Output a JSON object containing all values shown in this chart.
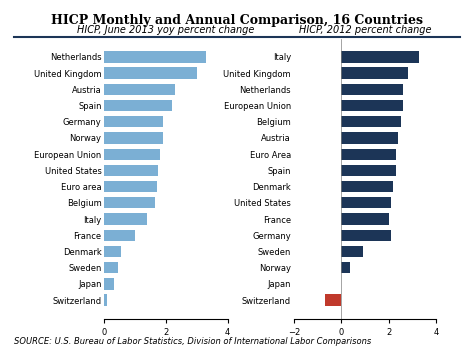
{
  "title": "HICP Monthly and Annual Comparison, 16 Countries",
  "left_subtitle": "HICP, June 2013 yoy percent change",
  "right_subtitle": "HICP, 2012 percent change",
  "source": "SOURCE: U.S. Bureau of Labor Statistics, Division of International Labor Comparisons",
  "left_countries": [
    "Netherlands",
    "United Kingdom",
    "Austria",
    "Spain",
    "Germany",
    "Norway",
    "European Union",
    "United States",
    "Euro area",
    "Belgium",
    "Italy",
    "France",
    "Denmark",
    "Sweden",
    "Japan",
    "Switzerland"
  ],
  "left_values": [
    3.3,
    3.0,
    2.3,
    2.2,
    1.9,
    1.9,
    1.8,
    1.75,
    1.7,
    1.65,
    1.4,
    1.0,
    0.55,
    0.45,
    0.3,
    0.1
  ],
  "left_color": "#7bafd4",
  "right_countries": [
    "Italy",
    "United Kingdom",
    "Netherlands",
    "European Union",
    "Belgium",
    "Austria",
    "Euro Area",
    "Spain",
    "Denmark",
    "United States",
    "France",
    "Germany",
    "Sweden",
    "Norway",
    "Japan",
    "Switzerland"
  ],
  "right_values": [
    3.3,
    2.8,
    2.6,
    2.6,
    2.5,
    2.4,
    2.3,
    2.3,
    2.2,
    2.1,
    2.0,
    2.1,
    0.9,
    0.35,
    0.0,
    -0.7
  ],
  "right_color_positive": "#1c3557",
  "right_color_negative": "#c0392b",
  "left_xlim": [
    0,
    4
  ],
  "right_xlim": [
    -2,
    4
  ],
  "title_fontsize": 9,
  "subtitle_fontsize": 7,
  "label_fontsize": 6,
  "tick_fontsize": 6,
  "source_fontsize": 6
}
